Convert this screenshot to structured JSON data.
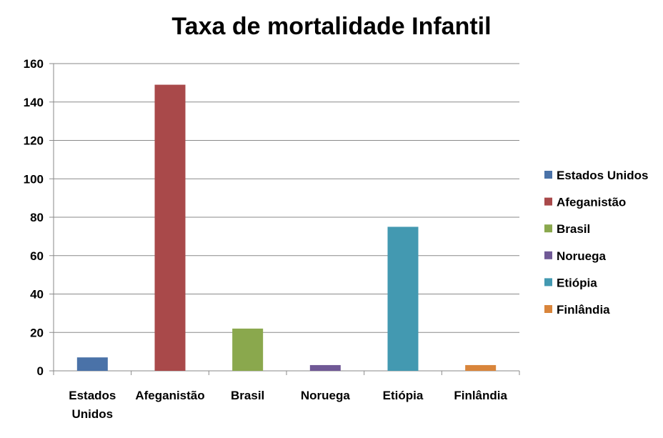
{
  "chart_data": {
    "type": "bar",
    "title": "Taxa de mortalidade Infantil",
    "xlabel": "",
    "ylabel": "",
    "ylim": [
      0,
      160
    ],
    "yticks": [
      0,
      20,
      40,
      60,
      80,
      100,
      120,
      140,
      160
    ],
    "grid": true,
    "legend_position": "right",
    "categories": [
      "Estados Unidos",
      "Afeganistão",
      "Brasil",
      "Noruega",
      "Etiópia",
      "Finlândia"
    ],
    "values": [
      7,
      149,
      22,
      3,
      75,
      3
    ],
    "colors": [
      "#4a72a8",
      "#a9494a",
      "#8aa84d",
      "#705996",
      "#4399b1",
      "#d9853b"
    ],
    "legend": [
      "Estados Unidos",
      "Afeganistão",
      "Brasil",
      "Noruega",
      "Etiópia",
      "Finlândia"
    ]
  }
}
